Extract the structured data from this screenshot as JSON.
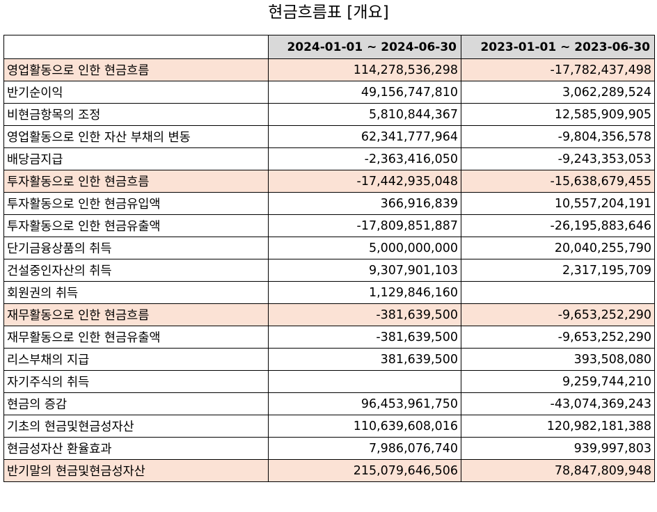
{
  "title": "현금흐름표 [개요]",
  "headers": {
    "col1": "2024-01-01 ~ 2024-06-30",
    "col2": "2023-01-01 ~ 2023-06-30"
  },
  "highlight_color": "#fbe2d5",
  "header_color": "#d9d9d9",
  "rows": [
    {
      "label": "영업활동으로 인한 현금흐름",
      "v1": "114,278,536,298",
      "v2": "-17,782,437,498"
    },
    {
      "label": "반기순이익",
      "v1": "49,156,747,810",
      "v2": "3,062,289,524"
    },
    {
      "label": "비현금항목의 조정",
      "v1": "5,810,844,367",
      "v2": "12,585,909,905"
    },
    {
      "label": "영업활동으로 인한 자산 부채의 변동",
      "v1": "62,341,777,964",
      "v2": "-9,804,356,578"
    },
    {
      "label": "배당금지급",
      "v1": "-2,363,416,050",
      "v2": "-9,243,353,053"
    },
    {
      "label": "투자활동으로 인한 현금흐름",
      "v1": "-17,442,935,048",
      "v2": "-15,638,679,455"
    },
    {
      "label": "투자활동으로 인한 현금유입액",
      "v1": "366,916,839",
      "v2": "10,557,204,191"
    },
    {
      "label": "투자활동으로 인한 현금유출액",
      "v1": "-17,809,851,887",
      "v2": "-26,195,883,646"
    },
    {
      "label": "단기금융상품의 취득",
      "v1": "5,000,000,000",
      "v2": "20,040,255,790"
    },
    {
      "label": "건설중인자산의 취득",
      "v1": "9,307,901,103",
      "v2": "2,317,195,709"
    },
    {
      "label": "회원권의 취득",
      "v1": "1,129,846,160",
      "v2": ""
    },
    {
      "label": "재무활동으로 인한 현금흐름",
      "v1": "-381,639,500",
      "v2": "-9,653,252,290"
    },
    {
      "label": "재무활동으로 인한 현금유출액",
      "v1": "-381,639,500",
      "v2": "-9,653,252,290"
    },
    {
      "label": "리스부채의 지급",
      "v1": "381,639,500",
      "v2": "393,508,080"
    },
    {
      "label": "자기주식의 취득",
      "v1": "",
      "v2": "9,259,744,210"
    },
    {
      "label": "현금의 증감",
      "v1": "96,453,961,750",
      "v2": "-43,074,369,243"
    },
    {
      "label": "기초의 현금및현금성자산",
      "v1": "110,639,608,016",
      "v2": "120,982,181,388"
    },
    {
      "label": "현금성자산 환율효과",
      "v1": "7,986,076,740",
      "v2": "939,997,803"
    },
    {
      "label": "반기말의 현금및현금성자산",
      "v1": "215,079,646,506",
      "v2": "78,847,809,948"
    }
  ]
}
